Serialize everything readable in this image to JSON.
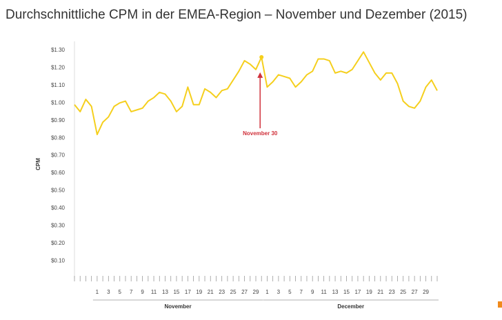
{
  "chart_data": {
    "type": "line",
    "title": "Durchschnittliche CPM in der EMEA-Region – November und Dezember (2015)",
    "y_label": "CPM",
    "categories": [
      null,
      null,
      null,
      null,
      "1",
      null,
      "3",
      null,
      "5",
      null,
      "7",
      null,
      "9",
      null,
      "11",
      null,
      "13",
      null,
      "15",
      null,
      "17",
      null,
      "19",
      null,
      "21",
      null,
      "23",
      null,
      "25",
      null,
      "27",
      null,
      "29",
      null,
      "1",
      null,
      "3",
      null,
      "5",
      null,
      "7",
      null,
      "9",
      null,
      "11",
      null,
      "13",
      null,
      "15",
      null,
      "17",
      null,
      "19",
      null,
      "21",
      null,
      "23",
      null,
      "25",
      null,
      "27",
      null,
      "29",
      null,
      null
    ],
    "category_groups": [
      {
        "label": "November",
        "first": 4,
        "last": 33
      },
      {
        "label": "December",
        "first": 34,
        "last": 64
      }
    ],
    "series": [
      {
        "name": "CPM",
        "color": "#f5cf1d",
        "values": [
          0.99,
          0.95,
          1.02,
          0.98,
          0.82,
          0.89,
          0.92,
          0.98,
          1.0,
          1.01,
          0.95,
          0.96,
          0.97,
          1.01,
          1.03,
          1.06,
          1.05,
          1.01,
          0.95,
          0.98,
          1.09,
          0.99,
          0.99,
          1.08,
          1.06,
          1.03,
          1.07,
          1.08,
          1.13,
          1.18,
          1.24,
          1.22,
          1.19,
          1.26,
          1.09,
          1.12,
          1.16,
          1.15,
          1.14,
          1.09,
          1.12,
          1.16,
          1.18,
          1.25,
          1.25,
          1.24,
          1.17,
          1.18,
          1.17,
          1.19,
          1.24,
          1.29,
          1.23,
          1.17,
          1.13,
          1.17,
          1.17,
          1.11,
          1.01,
          0.98,
          0.97,
          1.01,
          1.09,
          1.13,
          1.07
        ]
      }
    ],
    "annotation": {
      "text": "November 30",
      "index": 33,
      "color": "#d0303a"
    },
    "ylim": [
      0,
      1.35
    ],
    "yticks": [
      {
        "value": 0.1,
        "label": "$0.10"
      },
      {
        "value": 0.2,
        "label": "$0.20"
      },
      {
        "value": 0.3,
        "label": "$0.30"
      },
      {
        "value": 0.4,
        "label": "$0.40"
      },
      {
        "value": 0.5,
        "label": "$0.50"
      },
      {
        "value": 0.6,
        "label": "$0.60"
      },
      {
        "value": 0.7,
        "label": "$0.70"
      },
      {
        "value": 0.8,
        "label": "$0.80"
      },
      {
        "value": 0.9,
        "label": "$0.90"
      },
      {
        "value": 1.0,
        "label": "$1.00"
      },
      {
        "value": 1.1,
        "label": "$1.10"
      },
      {
        "value": 1.2,
        "label": "$1.20"
      },
      {
        "value": 1.3,
        "label": "$1.30"
      }
    ],
    "grid": false
  }
}
